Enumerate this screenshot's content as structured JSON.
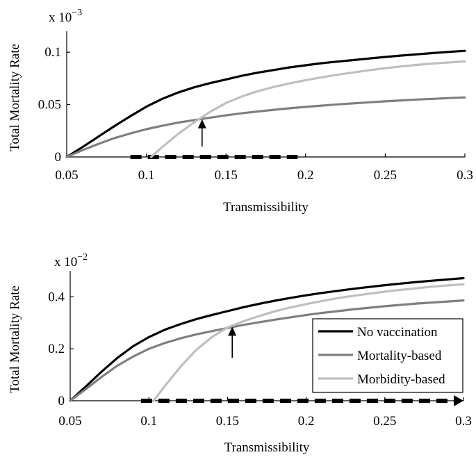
{
  "colors": {
    "no_vaccination": "#000000",
    "mortality_based": "#7f7f7f",
    "morbidity_based": "#bfbfbf",
    "annotation": "#000000"
  },
  "chart_data": [
    {
      "type": "line",
      "id": "top",
      "exponent_label": "x 10",
      "exponent_power": "−3",
      "xlabel": "Transmissibility",
      "ylabel": "Total Mortality Rate",
      "xlim": [
        0.05,
        0.3
      ],
      "ylim": [
        0,
        0.12
      ],
      "xticks": [
        0.05,
        0.1,
        0.15,
        0.2,
        0.25,
        0.3
      ],
      "xtick_labels": [
        "0.05",
        "0.1",
        "0.15",
        "0.2",
        "0.25",
        "0.3"
      ],
      "yticks": [
        0,
        0.05,
        0.1
      ],
      "ytick_labels": [
        "0",
        "0.05",
        "0.1"
      ],
      "legend": null,
      "series": [
        {
          "key": "no_vaccination",
          "x": [
            0.05,
            0.06,
            0.07,
            0.08,
            0.09,
            0.1,
            0.11,
            0.12,
            0.13,
            0.14,
            0.15,
            0.16,
            0.17,
            0.18,
            0.19,
            0.2,
            0.21,
            0.22,
            0.23,
            0.24,
            0.25,
            0.26,
            0.27,
            0.28,
            0.29,
            0.3
          ],
          "y": [
            0,
            0.0095,
            0.0195,
            0.0295,
            0.039,
            0.048,
            0.0555,
            0.0615,
            0.0665,
            0.0705,
            0.074,
            0.0775,
            0.0805,
            0.083,
            0.0855,
            0.0875,
            0.0895,
            0.091,
            0.0925,
            0.094,
            0.0955,
            0.0968,
            0.098,
            0.0992,
            0.1003,
            0.1013
          ]
        },
        {
          "key": "mortality_based",
          "x": [
            0.05,
            0.06,
            0.07,
            0.08,
            0.09,
            0.1,
            0.11,
            0.12,
            0.13,
            0.14,
            0.15,
            0.16,
            0.17,
            0.18,
            0.19,
            0.2,
            0.21,
            0.22,
            0.23,
            0.24,
            0.25,
            0.26,
            0.27,
            0.28,
            0.29,
            0.3
          ],
          "y": [
            0,
            0.0065,
            0.0125,
            0.018,
            0.0225,
            0.0265,
            0.0298,
            0.0328,
            0.0352,
            0.0375,
            0.0397,
            0.0417,
            0.0434,
            0.045,
            0.0465,
            0.0478,
            0.049,
            0.0502,
            0.0512,
            0.0522,
            0.0531,
            0.054,
            0.0548,
            0.0555,
            0.0562,
            0.0568
          ]
        },
        {
          "key": "morbidity_based",
          "x": [
            0.103,
            0.11,
            0.12,
            0.13,
            0.14,
            0.15,
            0.16,
            0.17,
            0.18,
            0.19,
            0.2,
            0.21,
            0.22,
            0.23,
            0.24,
            0.25,
            0.26,
            0.27,
            0.28,
            0.29,
            0.3
          ],
          "y": [
            0,
            0.0095,
            0.022,
            0.033,
            0.043,
            0.0515,
            0.0578,
            0.0628,
            0.0668,
            0.0702,
            0.0733,
            0.076,
            0.0785,
            0.0807,
            0.0828,
            0.0847,
            0.0864,
            0.0879,
            0.0892,
            0.0902,
            0.0912
          ]
        }
      ],
      "annotations": {
        "arrow_up": {
          "x": 0.135,
          "y_tail": 0.01,
          "y_head": 0.036
        },
        "dashed_segment": {
          "x_start": 0.09,
          "x_end": 0.195,
          "y": 0,
          "arrowhead": false
        }
      }
    },
    {
      "type": "line",
      "id": "bottom",
      "exponent_label": "x 10",
      "exponent_power": "−2",
      "xlabel": "Transmissibility",
      "ylabel": "Total Mortality Rate",
      "xlim": [
        0.05,
        0.3
      ],
      "ylim": [
        0,
        0.5
      ],
      "xticks": [
        0.05,
        0.1,
        0.15,
        0.2,
        0.25,
        0.3
      ],
      "xtick_labels": [
        "0.05",
        "0.1",
        "0.15",
        "0.2",
        "0.25",
        "0.3"
      ],
      "yticks": [
        0,
        0.2,
        0.4
      ],
      "ytick_labels": [
        "0",
        "0.2",
        "0.4"
      ],
      "legend": {
        "placement": "lower-right",
        "entries": [
          {
            "key": "no_vaccination",
            "label": "No vaccination"
          },
          {
            "key": "mortality_based",
            "label": "Mortality-based"
          },
          {
            "key": "morbidity_based",
            "label": "Morbidity-based"
          }
        ]
      },
      "series": [
        {
          "key": "no_vaccination",
          "x": [
            0.05,
            0.06,
            0.07,
            0.08,
            0.09,
            0.1,
            0.11,
            0.12,
            0.13,
            0.14,
            0.15,
            0.16,
            0.17,
            0.18,
            0.19,
            0.2,
            0.21,
            0.22,
            0.23,
            0.24,
            0.25,
            0.26,
            0.27,
            0.28,
            0.29,
            0.3
          ],
          "y": [
            0,
            0.055,
            0.112,
            0.165,
            0.21,
            0.245,
            0.273,
            0.295,
            0.314,
            0.33,
            0.345,
            0.36,
            0.373,
            0.385,
            0.396,
            0.406,
            0.415,
            0.423,
            0.431,
            0.438,
            0.445,
            0.451,
            0.457,
            0.462,
            0.467,
            0.472
          ]
        },
        {
          "key": "mortality_based",
          "x": [
            0.05,
            0.06,
            0.07,
            0.08,
            0.09,
            0.1,
            0.11,
            0.12,
            0.13,
            0.14,
            0.15,
            0.16,
            0.17,
            0.18,
            0.19,
            0.2,
            0.21,
            0.22,
            0.23,
            0.24,
            0.25,
            0.26,
            0.27,
            0.28,
            0.29,
            0.3
          ],
          "y": [
            0,
            0.045,
            0.092,
            0.135,
            0.17,
            0.2,
            0.222,
            0.24,
            0.255,
            0.268,
            0.28,
            0.292,
            0.302,
            0.312,
            0.321,
            0.33,
            0.338,
            0.345,
            0.352,
            0.358,
            0.364,
            0.369,
            0.374,
            0.378,
            0.382,
            0.386
          ]
        },
        {
          "key": "morbidity_based",
          "x": [
            0.103,
            0.11,
            0.12,
            0.13,
            0.14,
            0.15,
            0.16,
            0.17,
            0.18,
            0.19,
            0.2,
            0.21,
            0.22,
            0.23,
            0.24,
            0.25,
            0.26,
            0.27,
            0.28,
            0.29,
            0.3
          ],
          "y": [
            0,
            0.055,
            0.13,
            0.195,
            0.245,
            0.282,
            0.306,
            0.326,
            0.344,
            0.359,
            0.372,
            0.384,
            0.395,
            0.404,
            0.412,
            0.42,
            0.427,
            0.433,
            0.439,
            0.444,
            0.448
          ]
        }
      ],
      "annotations": {
        "arrow_up": {
          "x": 0.153,
          "y_tail": 0.165,
          "y_head": 0.285
        },
        "dashed_segment": {
          "x_start": 0.095,
          "x_end": 0.3,
          "y": 0,
          "arrowhead": true
        }
      }
    }
  ]
}
